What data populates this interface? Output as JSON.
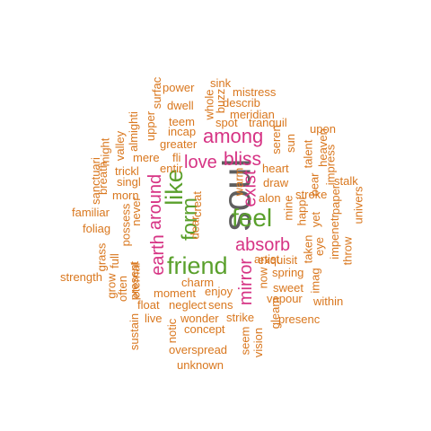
{
  "colors": {
    "grey": "#5f5f5f",
    "pink": "#d63384",
    "green": "#5aa02c",
    "orange": "#d9771e"
  },
  "words": [
    {
      "text": "soul",
      "color": "grey"
    },
    {
      "text": "feel",
      "color": "green"
    },
    {
      "text": "friend",
      "color": "green"
    },
    {
      "text": "like",
      "color": "green"
    },
    {
      "text": "form",
      "color": "green"
    },
    {
      "text": "among",
      "color": "pink"
    },
    {
      "text": "bliss",
      "color": "pink"
    },
    {
      "text": "love",
      "color": "pink"
    },
    {
      "text": "exist",
      "color": "pink"
    },
    {
      "text": "around",
      "color": "pink"
    },
    {
      "text": "earth",
      "color": "pink"
    },
    {
      "text": "absorb",
      "color": "pink"
    },
    {
      "text": "mirror",
      "color": "pink"
    },
    {
      "text": "sink",
      "color": "orange"
    },
    {
      "text": "power",
      "color": "orange"
    },
    {
      "text": "mistress",
      "color": "orange"
    },
    {
      "text": "dwell",
      "color": "orange"
    },
    {
      "text": "whole",
      "color": "orange"
    },
    {
      "text": "buzz",
      "color": "orange"
    },
    {
      "text": "describ",
      "color": "orange"
    },
    {
      "text": "surfac",
      "color": "orange"
    },
    {
      "text": "meridian",
      "color": "orange"
    },
    {
      "text": "teem",
      "color": "orange"
    },
    {
      "text": "spot",
      "color": "orange"
    },
    {
      "text": "tranquil",
      "color": "orange"
    },
    {
      "text": "almighti",
      "color": "orange"
    },
    {
      "text": "upper",
      "color": "orange"
    },
    {
      "text": "incap",
      "color": "orange"
    },
    {
      "text": "upon",
      "color": "orange"
    },
    {
      "text": "greater",
      "color": "orange"
    },
    {
      "text": "seren",
      "color": "orange"
    },
    {
      "text": "sun",
      "color": "orange"
    },
    {
      "text": "valley",
      "color": "orange"
    },
    {
      "text": "might",
      "color": "orange"
    },
    {
      "text": "fli",
      "color": "orange"
    },
    {
      "text": "mere",
      "color": "orange"
    },
    {
      "text": "heart",
      "color": "orange"
    },
    {
      "text": "talent",
      "color": "orange"
    },
    {
      "text": "heaven",
      "color": "orange"
    },
    {
      "text": "entir",
      "color": "orange"
    },
    {
      "text": "impress",
      "color": "orange"
    },
    {
      "text": "sanctuari",
      "color": "orange"
    },
    {
      "text": "trickl",
      "color": "orange"
    },
    {
      "text": "bear",
      "color": "orange"
    },
    {
      "text": "breath",
      "color": "orange"
    },
    {
      "text": "singl",
      "color": "orange"
    },
    {
      "text": "warm",
      "color": "orange"
    },
    {
      "text": "draw",
      "color": "orange"
    },
    {
      "text": "stalk",
      "color": "orange"
    },
    {
      "text": "morn",
      "color": "orange"
    },
    {
      "text": "stroke",
      "color": "orange"
    },
    {
      "text": "familiar",
      "color": "orange"
    },
    {
      "text": "never",
      "color": "orange"
    },
    {
      "text": "creat",
      "color": "orange"
    },
    {
      "text": "alon",
      "color": "orange"
    },
    {
      "text": "mine",
      "color": "orange"
    },
    {
      "text": "happi",
      "color": "orange"
    },
    {
      "text": "paper",
      "color": "orange"
    },
    {
      "text": "univers",
      "color": "orange"
    },
    {
      "text": "foliag",
      "color": "orange"
    },
    {
      "text": "possess",
      "color": "orange"
    },
    {
      "text": "dear",
      "color": "orange"
    },
    {
      "text": "yet",
      "color": "orange"
    },
    {
      "text": "impenetr",
      "color": "orange"
    },
    {
      "text": "artist",
      "color": "orange"
    },
    {
      "text": "eye",
      "color": "orange"
    },
    {
      "text": "throw",
      "color": "orange"
    },
    {
      "text": "taken",
      "color": "orange"
    },
    {
      "text": "exquisit",
      "color": "orange"
    },
    {
      "text": "grass",
      "color": "orange"
    },
    {
      "text": "full",
      "color": "orange"
    },
    {
      "text": "strength",
      "color": "orange"
    },
    {
      "text": "spring",
      "color": "orange"
    },
    {
      "text": "charm",
      "color": "orange"
    },
    {
      "text": "now",
      "color": "orange"
    },
    {
      "text": "sweet",
      "color": "orange"
    },
    {
      "text": "grow",
      "color": "orange"
    },
    {
      "text": "eternal",
      "color": "orange"
    },
    {
      "text": "present",
      "color": "orange"
    },
    {
      "text": "often",
      "color": "orange"
    },
    {
      "text": "enjoy",
      "color": "orange"
    },
    {
      "text": "imag",
      "color": "orange"
    },
    {
      "text": "moment",
      "color": "orange"
    },
    {
      "text": "vapour",
      "color": "orange"
    },
    {
      "text": "within",
      "color": "orange"
    },
    {
      "text": "float",
      "color": "orange"
    },
    {
      "text": "neglect",
      "color": "orange"
    },
    {
      "text": "sens",
      "color": "orange"
    },
    {
      "text": "gleam",
      "color": "orange"
    },
    {
      "text": "sustain",
      "color": "orange"
    },
    {
      "text": "live",
      "color": "orange"
    },
    {
      "text": "wonder",
      "color": "orange"
    },
    {
      "text": "strike",
      "color": "orange"
    },
    {
      "text": "presenc",
      "color": "orange"
    },
    {
      "text": "notic",
      "color": "orange"
    },
    {
      "text": "concept",
      "color": "orange"
    },
    {
      "text": "seem",
      "color": "orange"
    },
    {
      "text": "vision",
      "color": "orange"
    },
    {
      "text": "overspread",
      "color": "orange"
    },
    {
      "text": "unknown",
      "color": "orange"
    }
  ]
}
